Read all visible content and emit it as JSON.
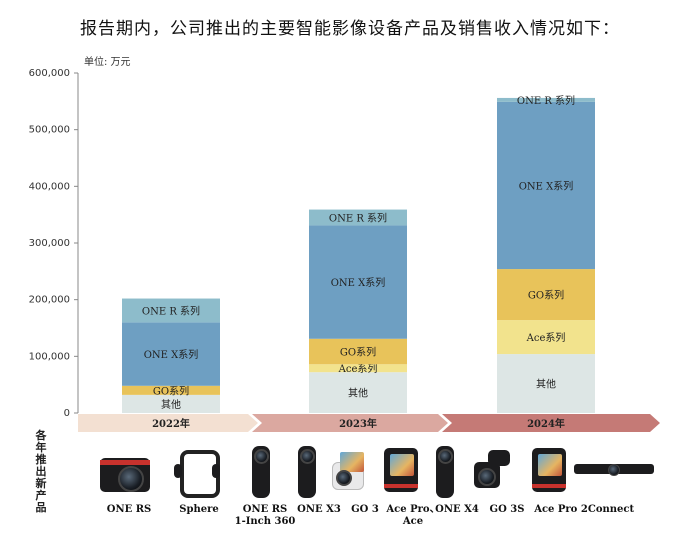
{
  "title": "报告期内，公司推出的主要智能影像设备产品及销售收入情况如下：",
  "chart_data": {
    "type": "bar",
    "stacked": true,
    "unit_label": "单位: 万元",
    "ylim": [
      0,
      600000
    ],
    "yticks": [
      "0",
      "100,000",
      "200,000",
      "300,000",
      "400,000",
      "500,000",
      "600,000"
    ],
    "ytick_values": [
      0,
      100000,
      200000,
      300000,
      400000,
      500000,
      600000
    ],
    "grid": false,
    "categories": [
      "2022年",
      "2023年",
      "2024年"
    ],
    "series": [
      {
        "name": "其他",
        "color": "#dde6e5",
        "values": [
          32000,
          72000,
          104000
        ]
      },
      {
        "name": "Ace系列",
        "color": "#f2e38d",
        "values": [
          0,
          14000,
          60000
        ]
      },
      {
        "name": "GO系列",
        "color": "#e8c35a",
        "values": [
          16000,
          45000,
          90000
        ]
      },
      {
        "name": "ONE X系列",
        "color": "#6e9fc2",
        "values": [
          112000,
          200000,
          295000
        ]
      },
      {
        "name": "ONE R 系列",
        "color": "#8dbccb",
        "values": [
          42000,
          28000,
          7000
        ]
      }
    ],
    "segment_labels_shown": [
      [
        "其他",
        "",
        "GO系列",
        "ONE X系列",
        "ONE R 系列"
      ],
      [
        "其他",
        "Ace系列",
        "GO系列",
        "ONE X系列",
        "ONE R 系列"
      ],
      [
        "其他",
        "Ace系列",
        "GO系列",
        "ONE X系列",
        "ONE R 系列"
      ]
    ],
    "timeline_colors": [
      "#f3e0d2",
      "#dba8a0",
      "#c57a76"
    ]
  },
  "side_label": "各年推出新产品",
  "products": [
    {
      "name": "ONE RS",
      "icon": "camera-red-lens-icon"
    },
    {
      "name": "Sphere",
      "icon": "drone-mount-icon"
    },
    {
      "name": "ONE RS\n1-Inch 360",
      "icon": "stick-camera-icon"
    },
    {
      "name": "ONE X3",
      "icon": "stick-camera-icon"
    },
    {
      "name": "GO 3",
      "icon": "white-action-cam-icon"
    },
    {
      "name": "Ace Pro、\nAce",
      "icon": "action-cam-screen-icon"
    },
    {
      "name": "ONE X4",
      "icon": "stick-camera-icon"
    },
    {
      "name": "GO 3S",
      "icon": "action-cam-icon"
    },
    {
      "name": "Ace Pro 2",
      "icon": "action-cam-screen-icon"
    },
    {
      "name": "Connect",
      "icon": "webcam-bar-icon"
    }
  ]
}
